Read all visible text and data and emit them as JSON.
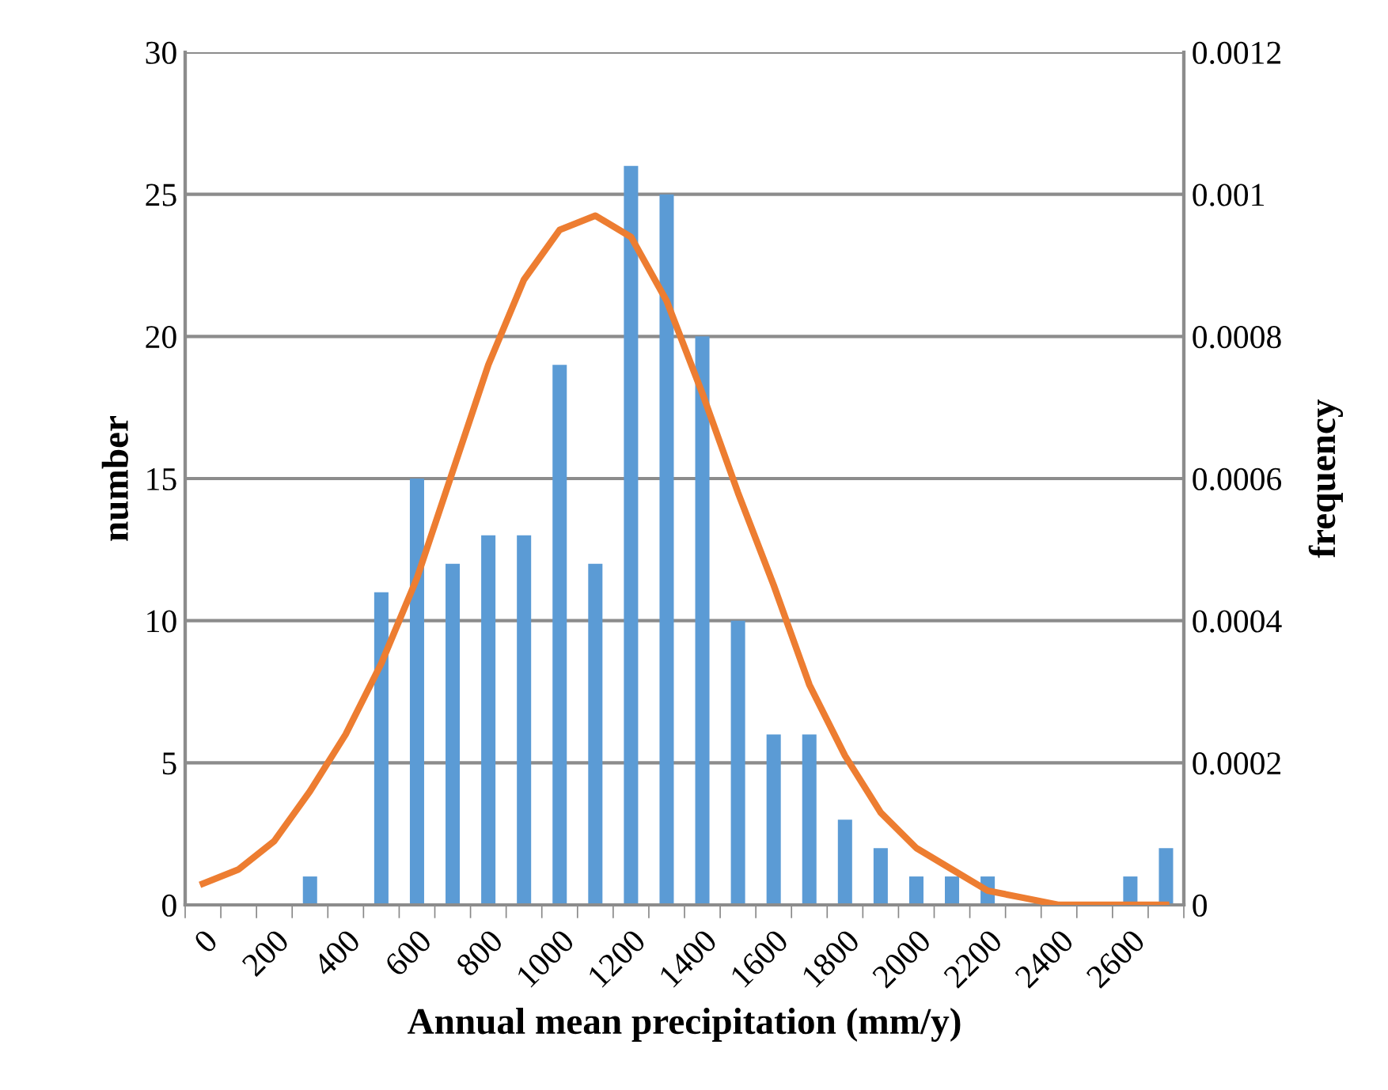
{
  "chart_data": {
    "type": "bar",
    "xlabel": "Annual mean precipitation (mm/y)",
    "ylabel": "number",
    "y2label": "frequency",
    "categories": [
      "0",
      null,
      "200",
      null,
      "400",
      null,
      "600",
      null,
      "800",
      null,
      "1000",
      null,
      "1200",
      null,
      "1400",
      null,
      "1600",
      null,
      "1800",
      null,
      "2000",
      null,
      "2200",
      null,
      "2400",
      null,
      "2600",
      null
    ],
    "series": [
      {
        "color": "#5b9bd5",
        "values": [
          0,
          0,
          0,
          1,
          0,
          11,
          15,
          12,
          13,
          13,
          19,
          12,
          26,
          25,
          20,
          10,
          6,
          6,
          3,
          2,
          1,
          1,
          1,
          0,
          0,
          0,
          1,
          2
        ]
      },
      {
        "type": "line",
        "axis": "y2",
        "color": "#ed7d31",
        "marker": "none",
        "line_style": "solid",
        "values": [
          3e-05,
          5e-05,
          9e-05,
          0.00016,
          0.00024,
          0.00034,
          0.00046,
          0.00061,
          0.00076,
          0.00088,
          0.00095,
          0.00097,
          0.00094,
          0.00085,
          0.00072,
          0.00058,
          0.00045,
          0.00031,
          0.00021,
          0.00013,
          8e-05,
          5e-05,
          2e-05,
          1e-05,
          0,
          0,
          0,
          0
        ]
      }
    ],
    "ylim": [
      0,
      30
    ],
    "yticks": [
      0,
      5,
      10,
      15,
      20,
      25,
      30
    ],
    "y2lim": [
      0,
      0.0012
    ],
    "y2ticks": [
      0,
      0.0002,
      0.0004,
      0.0006,
      0.0008,
      0.001,
      0.0012
    ],
    "grid": "y",
    "legend": false
  }
}
